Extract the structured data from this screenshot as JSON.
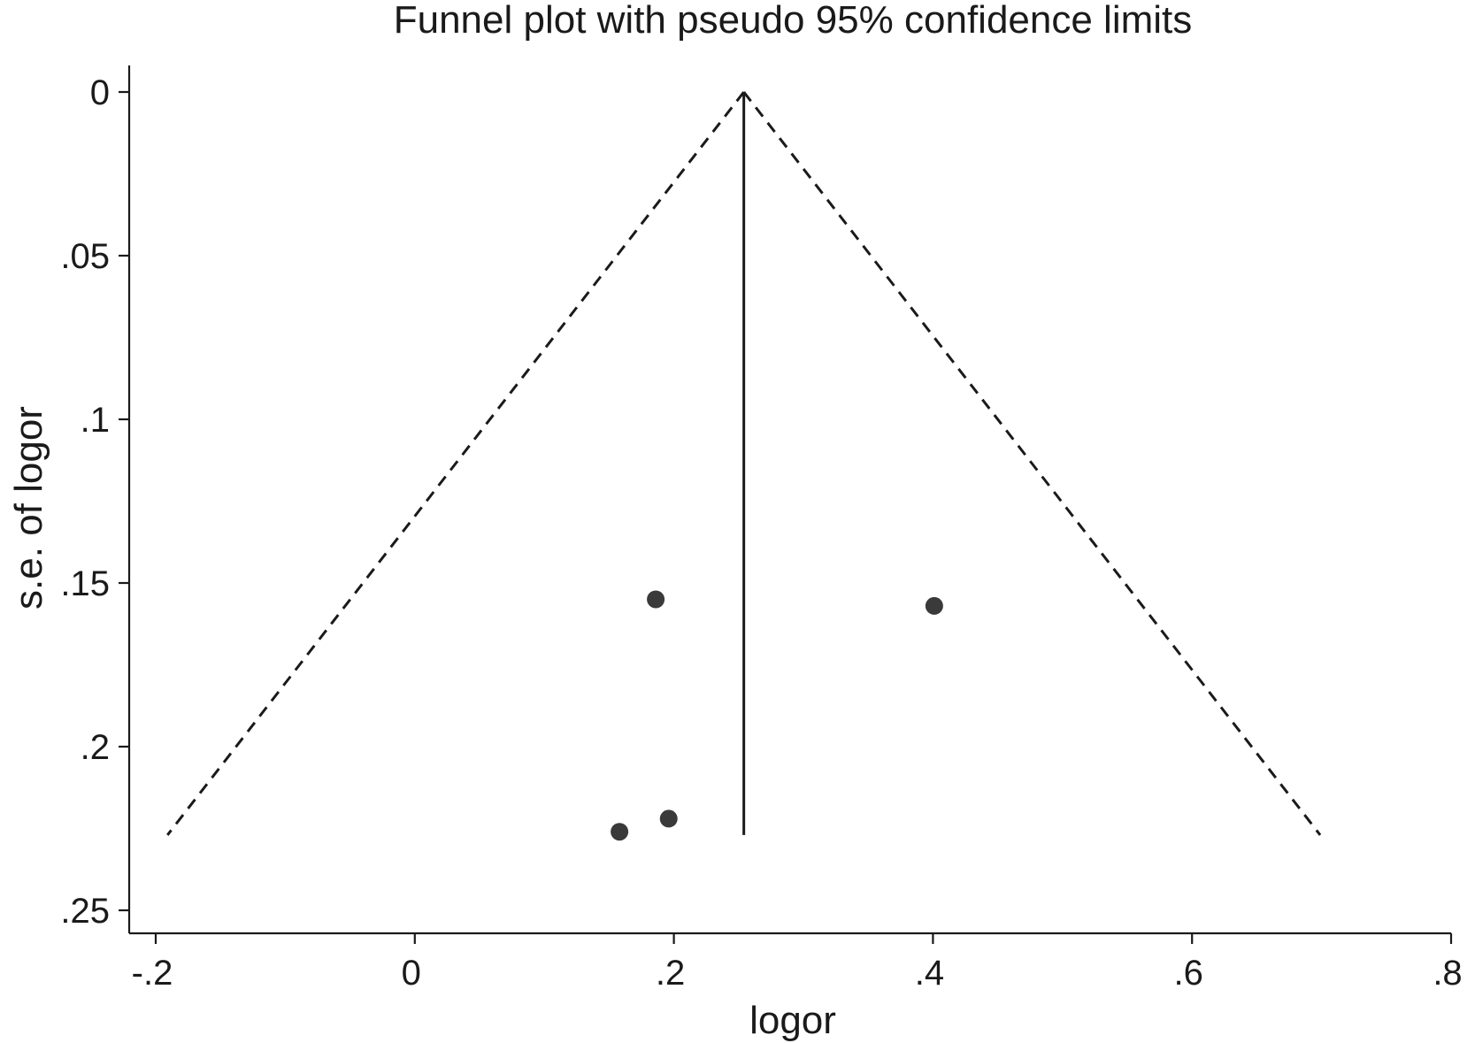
{
  "chart_data": {
    "type": "scatter",
    "title": "Funnel plot with pseudo 95% confidence limits",
    "xlabel": "logor",
    "ylabel": "s.e. of logor",
    "xlim": [
      -0.2,
      0.8
    ],
    "ylim": [
      0,
      0.25
    ],
    "y_inverted": true,
    "x_ticks": [
      {
        "value": -0.2,
        "label": "-.2"
      },
      {
        "value": 0,
        "label": "0"
      },
      {
        "value": 0.2,
        "label": ".2"
      },
      {
        "value": 0.4,
        "label": ".4"
      },
      {
        "value": 0.6,
        "label": ".6"
      },
      {
        "value": 0.8,
        "label": ".8"
      }
    ],
    "y_ticks": [
      {
        "value": 0,
        "label": "0"
      },
      {
        "value": 0.05,
        "label": ".05"
      },
      {
        "value": 0.1,
        "label": ".1"
      },
      {
        "value": 0.15,
        "label": ".15"
      },
      {
        "value": 0.2,
        "label": ".2"
      },
      {
        "value": 0.25,
        "label": ".25"
      }
    ],
    "grid": false,
    "legend": "none",
    "pooled_estimate": 0.254,
    "se_max": 0.227,
    "ci_z": 1.96,
    "points": [
      {
        "x": 0.186,
        "y": 0.155
      },
      {
        "x": 0.401,
        "y": 0.157
      },
      {
        "x": 0.196,
        "y": 0.222
      },
      {
        "x": 0.158,
        "y": 0.226
      }
    ],
    "colors": {
      "axis": "#1a1a1a",
      "points": "#3a3a3a"
    }
  }
}
